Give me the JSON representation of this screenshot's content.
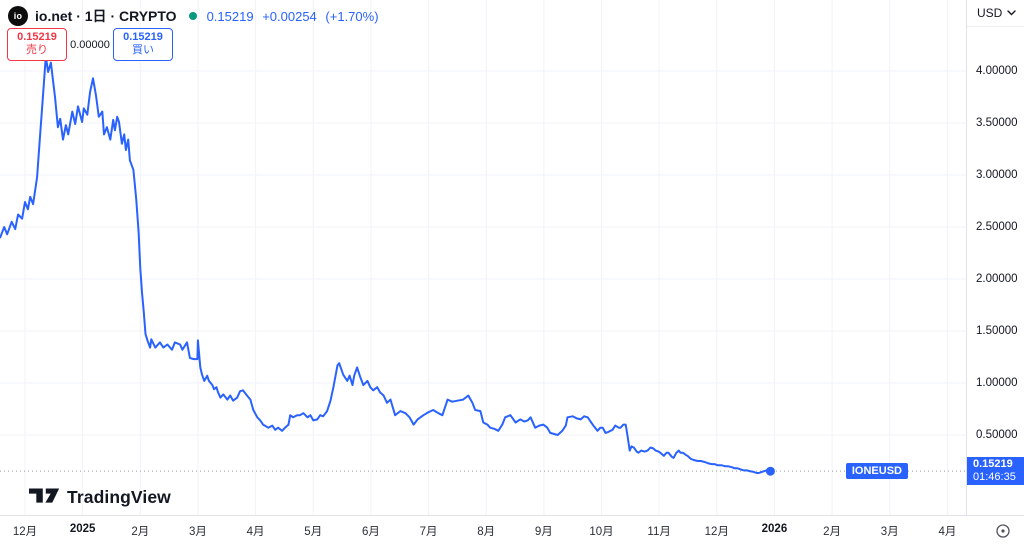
{
  "header": {
    "logo_text": "io",
    "symbol_title": "io.net · 1日 · CRYPTO",
    "last_price": "0.15219",
    "change": "+0.00254",
    "change_pct": "(+1.70%)",
    "sell_price": "0.15219",
    "sell_label": "売り",
    "spread": "0.00000",
    "buy_price": "0.15219",
    "buy_label": "買い"
  },
  "price_axis": {
    "currency": "USD",
    "ticks": [
      "4.00000",
      "3.50000",
      "3.00000",
      "2.50000",
      "2.00000",
      "1.50000",
      "1.00000",
      "0.50000"
    ],
    "badge_price": "0.15219",
    "badge_countdown": "01:46:35"
  },
  "time_axis": {
    "ticks": [
      {
        "label": "12月",
        "bold": false
      },
      {
        "label": "2025",
        "bold": true
      },
      {
        "label": "2月",
        "bold": false
      },
      {
        "label": "3月",
        "bold": false
      },
      {
        "label": "4月",
        "bold": false
      },
      {
        "label": "5月",
        "bold": false
      },
      {
        "label": "6月",
        "bold": false
      },
      {
        "label": "7月",
        "bold": false
      },
      {
        "label": "8月",
        "bold": false
      },
      {
        "label": "9月",
        "bold": false
      },
      {
        "label": "10月",
        "bold": false
      },
      {
        "label": "11月",
        "bold": false
      },
      {
        "label": "12月",
        "bold": false
      },
      {
        "label": "2026",
        "bold": true
      },
      {
        "label": "2月",
        "bold": false
      },
      {
        "label": "3月",
        "bold": false
      },
      {
        "label": "4月",
        "bold": false
      }
    ]
  },
  "badge": {
    "symbol": "IONEUSD"
  },
  "footer": {
    "brand": "TradingView"
  },
  "colors": {
    "line": "#2962ff",
    "up_green": "#089981",
    "sell_red": "#f23645",
    "grid": "#f0f3fa",
    "axis_border": "#e0e3eb",
    "axis_text": "#131722",
    "price_line": "#9598a1",
    "badge_bg": "#2962ff"
  },
  "chart_data": {
    "type": "line",
    "title": "io.net (IONEUSD) 1D line chart",
    "series_name": "IONEUSD",
    "y_unit": "USD",
    "x_unit": "months since the Dec-2024 tick",
    "ylim": [
      0,
      4.7
    ],
    "grid": true,
    "y_ticks": [
      4.0,
      3.5,
      3.0,
      2.5,
      2.0,
      1.5,
      1.0,
      0.5
    ],
    "current_price": 0.15219,
    "points": [
      [
        -0.43,
        2.4
      ],
      [
        -0.36,
        2.5
      ],
      [
        -0.31,
        2.43
      ],
      [
        -0.23,
        2.55
      ],
      [
        -0.17,
        2.48
      ],
      [
        -0.12,
        2.62
      ],
      [
        -0.05,
        2.58
      ],
      [
        0.0,
        2.74
      ],
      [
        0.05,
        2.67
      ],
      [
        0.09,
        2.79
      ],
      [
        0.14,
        2.72
      ],
      [
        0.21,
        2.98
      ],
      [
        0.26,
        3.37
      ],
      [
        0.31,
        3.75
      ],
      [
        0.36,
        4.14
      ],
      [
        0.4,
        3.99
      ],
      [
        0.45,
        4.08
      ],
      [
        0.52,
        3.75
      ],
      [
        0.57,
        3.46
      ],
      [
        0.61,
        3.54
      ],
      [
        0.66,
        3.34
      ],
      [
        0.71,
        3.48
      ],
      [
        0.75,
        3.39
      ],
      [
        0.82,
        3.61
      ],
      [
        0.87,
        3.49
      ],
      [
        0.92,
        3.66
      ],
      [
        0.99,
        3.51
      ],
      [
        1.02,
        3.64
      ],
      [
        1.08,
        3.58
      ],
      [
        1.13,
        3.8
      ],
      [
        1.18,
        3.93
      ],
      [
        1.23,
        3.77
      ],
      [
        1.28,
        3.56
      ],
      [
        1.34,
        3.61
      ],
      [
        1.37,
        3.39
      ],
      [
        1.42,
        3.46
      ],
      [
        1.48,
        3.34
      ],
      [
        1.53,
        3.53
      ],
      [
        1.56,
        3.43
      ],
      [
        1.6,
        3.56
      ],
      [
        1.63,
        3.51
      ],
      [
        1.68,
        3.3
      ],
      [
        1.72,
        3.39
      ],
      [
        1.75,
        3.24
      ],
      [
        1.79,
        3.34
      ],
      [
        1.82,
        3.14
      ],
      [
        1.88,
        3.05
      ],
      [
        1.93,
        2.76
      ],
      [
        1.97,
        2.45
      ],
      [
        2.0,
        2.1
      ],
      [
        2.03,
        1.87
      ],
      [
        2.06,
        1.68
      ],
      [
        2.09,
        1.47
      ],
      [
        2.13,
        1.4
      ],
      [
        2.17,
        1.34
      ],
      [
        2.19,
        1.42
      ],
      [
        2.26,
        1.34
      ],
      [
        2.34,
        1.39
      ],
      [
        2.4,
        1.34
      ],
      [
        2.47,
        1.37
      ],
      [
        2.55,
        1.32
      ],
      [
        2.6,
        1.39
      ],
      [
        2.69,
        1.37
      ],
      [
        2.73,
        1.32
      ],
      [
        2.81,
        1.39
      ],
      [
        2.86,
        1.24
      ],
      [
        2.93,
        1.23
      ],
      [
        2.99,
        1.23
      ],
      [
        3.0,
        1.41
      ],
      [
        3.04,
        1.15
      ],
      [
        3.07,
        1.08
      ],
      [
        3.11,
        1.02
      ],
      [
        3.16,
        1.07
      ],
      [
        3.19,
        1.02
      ],
      [
        3.25,
        0.98
      ],
      [
        3.28,
        0.94
      ],
      [
        3.32,
        0.96
      ],
      [
        3.35,
        0.91
      ],
      [
        3.39,
        0.86
      ],
      [
        3.44,
        0.89
      ],
      [
        3.51,
        0.84
      ],
      [
        3.56,
        0.88
      ],
      [
        3.61,
        0.83
      ],
      [
        3.68,
        0.86
      ],
      [
        3.73,
        0.92
      ],
      [
        3.78,
        0.93
      ],
      [
        3.85,
        0.88
      ],
      [
        3.91,
        0.84
      ],
      [
        3.96,
        0.74
      ],
      [
        4.03,
        0.67
      ],
      [
        4.08,
        0.64
      ],
      [
        4.13,
        0.6
      ],
      [
        4.22,
        0.57
      ],
      [
        4.29,
        0.59
      ],
      [
        4.34,
        0.55
      ],
      [
        4.39,
        0.57
      ],
      [
        4.46,
        0.54
      ],
      [
        4.51,
        0.57
      ],
      [
        4.57,
        0.6
      ],
      [
        4.6,
        0.69
      ],
      [
        4.65,
        0.67
      ],
      [
        4.72,
        0.69
      ],
      [
        4.77,
        0.69
      ],
      [
        4.83,
        0.71
      ],
      [
        4.9,
        0.67
      ],
      [
        4.95,
        0.69
      ],
      [
        5.0,
        0.64
      ],
      [
        5.07,
        0.65
      ],
      [
        5.12,
        0.69
      ],
      [
        5.17,
        0.68
      ],
      [
        5.24,
        0.73
      ],
      [
        5.3,
        0.83
      ],
      [
        5.35,
        0.96
      ],
      [
        5.42,
        1.17
      ],
      [
        5.45,
        1.19
      ],
      [
        5.52,
        1.08
      ],
      [
        5.59,
        1.02
      ],
      [
        5.63,
        1.07
      ],
      [
        5.68,
        0.98
      ],
      [
        5.71,
        1.07
      ],
      [
        5.76,
        1.15
      ],
      [
        5.82,
        1.05
      ],
      [
        5.87,
        0.98
      ],
      [
        5.94,
        1.02
      ],
      [
        5.99,
        0.96
      ],
      [
        6.04,
        0.93
      ],
      [
        6.11,
        0.96
      ],
      [
        6.16,
        0.91
      ],
      [
        6.22,
        0.88
      ],
      [
        6.28,
        0.81
      ],
      [
        6.34,
        0.84
      ],
      [
        6.42,
        0.69
      ],
      [
        6.51,
        0.73
      ],
      [
        6.6,
        0.71
      ],
      [
        6.67,
        0.67
      ],
      [
        6.74,
        0.6
      ],
      [
        6.81,
        0.65
      ],
      [
        6.91,
        0.69
      ],
      [
        7.0,
        0.72
      ],
      [
        7.08,
        0.74
      ],
      [
        7.17,
        0.71
      ],
      [
        7.24,
        0.69
      ],
      [
        7.33,
        0.84
      ],
      [
        7.41,
        0.82
      ],
      [
        7.5,
        0.83
      ],
      [
        7.6,
        0.84
      ],
      [
        7.69,
        0.88
      ],
      [
        7.76,
        0.81
      ],
      [
        7.81,
        0.74
      ],
      [
        7.9,
        0.73
      ],
      [
        7.95,
        0.62
      ],
      [
        8.02,
        0.6
      ],
      [
        8.07,
        0.57
      ],
      [
        8.14,
        0.56
      ],
      [
        8.21,
        0.54
      ],
      [
        8.28,
        0.6
      ],
      [
        8.33,
        0.67
      ],
      [
        8.42,
        0.69
      ],
      [
        8.51,
        0.62
      ],
      [
        8.59,
        0.65
      ],
      [
        8.66,
        0.63
      ],
      [
        8.72,
        0.64
      ],
      [
        8.77,
        0.67
      ],
      [
        8.85,
        0.57
      ],
      [
        8.92,
        0.59
      ],
      [
        8.99,
        0.6
      ],
      [
        9.06,
        0.57
      ],
      [
        9.11,
        0.52
      ],
      [
        9.18,
        0.51
      ],
      [
        9.24,
        0.5
      ],
      [
        9.32,
        0.54
      ],
      [
        9.38,
        0.59
      ],
      [
        9.41,
        0.67
      ],
      [
        9.5,
        0.68
      ],
      [
        9.57,
        0.66
      ],
      [
        9.64,
        0.65
      ],
      [
        9.7,
        0.68
      ],
      [
        9.76,
        0.67
      ],
      [
        9.81,
        0.63
      ],
      [
        9.86,
        0.59
      ],
      [
        9.93,
        0.54
      ],
      [
        9.98,
        0.57
      ],
      [
        10.02,
        0.57
      ],
      [
        10.07,
        0.52
      ],
      [
        10.12,
        0.53
      ],
      [
        10.19,
        0.55
      ],
      [
        10.24,
        0.59
      ],
      [
        10.3,
        0.57
      ],
      [
        10.33,
        0.57
      ],
      [
        10.38,
        0.6
      ],
      [
        10.42,
        0.6
      ],
      [
        10.45,
        0.5
      ],
      [
        10.49,
        0.35
      ],
      [
        10.52,
        0.39
      ],
      [
        10.56,
        0.38
      ],
      [
        10.61,
        0.34
      ],
      [
        10.64,
        0.33
      ],
      [
        10.69,
        0.35
      ],
      [
        10.75,
        0.34
      ],
      [
        10.8,
        0.35
      ],
      [
        10.85,
        0.38
      ],
      [
        10.9,
        0.37
      ],
      [
        10.94,
        0.35
      ],
      [
        10.99,
        0.34
      ],
      [
        11.02,
        0.33
      ],
      [
        11.08,
        0.3
      ],
      [
        11.13,
        0.33
      ],
      [
        11.16,
        0.33
      ],
      [
        11.22,
        0.29
      ],
      [
        11.25,
        0.28
      ],
      [
        11.3,
        0.33
      ],
      [
        11.34,
        0.35
      ],
      [
        11.37,
        0.33
      ],
      [
        11.41,
        0.33
      ],
      [
        11.46,
        0.31
      ],
      [
        11.49,
        0.3
      ],
      [
        11.55,
        0.27
      ],
      [
        11.6,
        0.26
      ],
      [
        11.67,
        0.25
      ],
      [
        11.72,
        0.25
      ],
      [
        11.79,
        0.24
      ],
      [
        11.84,
        0.23
      ],
      [
        11.91,
        0.22
      ],
      [
        11.96,
        0.22
      ],
      [
        12.01,
        0.21
      ],
      [
        12.08,
        0.21
      ],
      [
        12.14,
        0.2
      ],
      [
        12.19,
        0.2
      ],
      [
        12.26,
        0.19
      ],
      [
        12.31,
        0.18
      ],
      [
        12.36,
        0.18
      ],
      [
        12.41,
        0.17
      ],
      [
        12.47,
        0.16
      ],
      [
        12.52,
        0.16
      ],
      [
        12.59,
        0.15
      ],
      [
        12.64,
        0.145
      ],
      [
        12.69,
        0.135
      ],
      [
        12.73,
        0.135
      ],
      [
        12.78,
        0.145
      ],
      [
        12.86,
        0.16
      ],
      [
        12.93,
        0.152
      ]
    ]
  }
}
